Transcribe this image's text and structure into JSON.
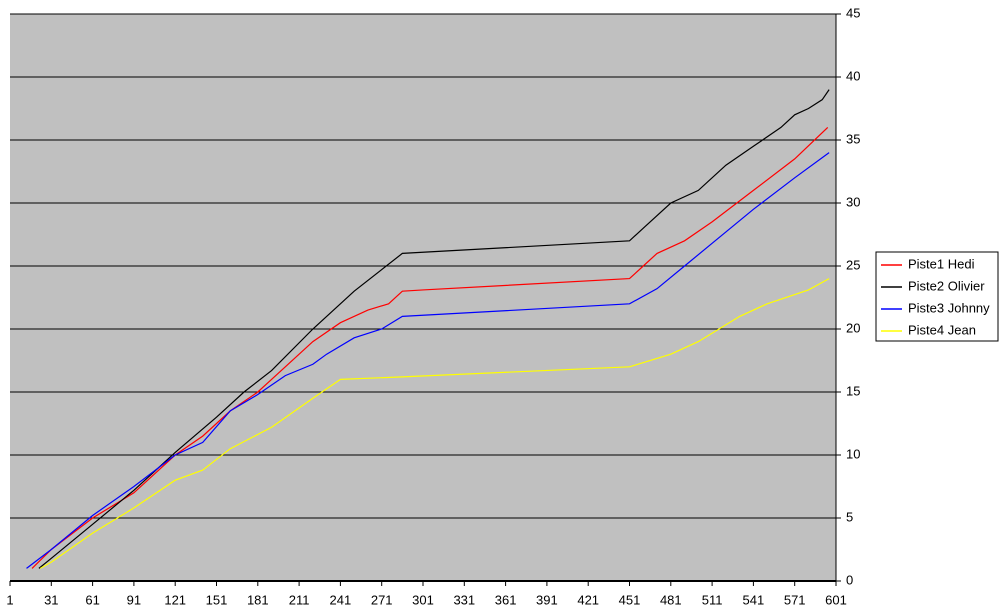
{
  "chart_data": {
    "type": "line",
    "xlim": [
      1,
      601
    ],
    "xticks": [
      1,
      31,
      61,
      91,
      121,
      151,
      181,
      211,
      241,
      271,
      301,
      331,
      361,
      391,
      421,
      451,
      481,
      511,
      541,
      571,
      601
    ],
    "ylim": [
      0,
      45
    ],
    "yticks": [
      0,
      5,
      10,
      15,
      20,
      25,
      30,
      35,
      40,
      45
    ],
    "grid": true,
    "legend": "right",
    "series": [
      {
        "name": "Piste1 Hedi",
        "color": "#ff0000",
        "x": [
          17,
          31,
          61,
          91,
          121,
          141,
          161,
          181,
          201,
          221,
          241,
          261,
          276,
          286,
          301,
          451,
          461,
          471,
          491,
          511,
          541,
          571,
          595
        ],
        "values": [
          1,
          2.5,
          5,
          7,
          10,
          11.5,
          13.5,
          15,
          17,
          19,
          20.5,
          21.5,
          22,
          23,
          23.1,
          24,
          25,
          26,
          27,
          28.5,
          31,
          33.5,
          36
        ]
      },
      {
        "name": "Piste2 Olivier",
        "color": "#000000",
        "x": [
          22,
          31,
          61,
          91,
          121,
          151,
          171,
          191,
          221,
          251,
          286,
          451,
          461,
          481,
          501,
          521,
          541,
          561,
          571,
          581,
          591,
          596
        ],
        "values": [
          1,
          1.8,
          4.5,
          7.2,
          10.2,
          13,
          15,
          16.7,
          20,
          23,
          26,
          27,
          28,
          30,
          31,
          33,
          34.5,
          36,
          37,
          37.5,
          38.2,
          39
        ]
      },
      {
        "name": "Piste3 Johnny",
        "color": "#0000ff",
        "x": [
          13,
          31,
          61,
          91,
          121,
          141,
          161,
          181,
          201,
          221,
          231,
          251,
          271,
          286,
          451,
          471,
          491,
          511,
          541,
          571,
          596
        ],
        "values": [
          1,
          2.5,
          5.2,
          7.5,
          10,
          11,
          13.5,
          14.8,
          16.3,
          17.2,
          18,
          19.3,
          20,
          21,
          22,
          23.2,
          25,
          26.8,
          29.5,
          32,
          34
        ]
      },
      {
        "name": "Piste4 Jean",
        "color": "#ffff00",
        "x": [
          23,
          31,
          61,
          91,
          121,
          141,
          161,
          191,
          221,
          241,
          286,
          451,
          481,
          501,
          531,
          551,
          581,
          596
        ],
        "values": [
          1,
          1.5,
          3.8,
          5.8,
          8,
          8.8,
          10.5,
          12.2,
          14.5,
          16,
          16.2,
          17,
          18,
          19,
          21,
          22,
          23.1,
          24
        ]
      }
    ]
  }
}
